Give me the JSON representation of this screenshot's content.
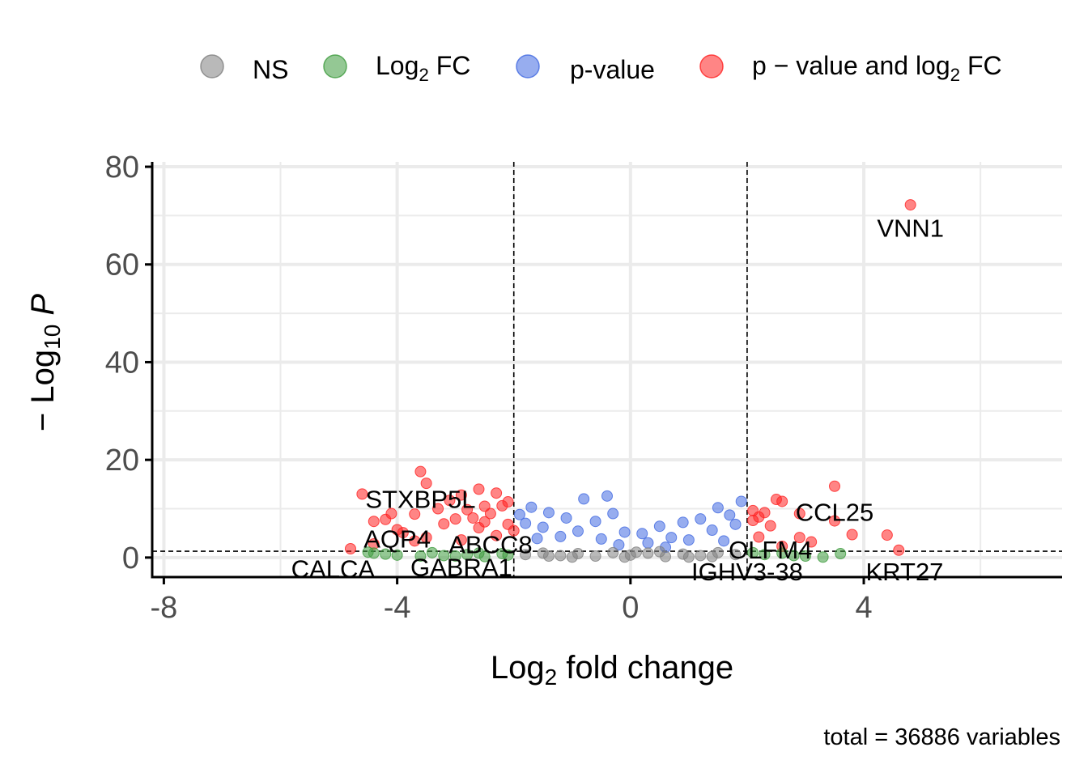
{
  "chart_data": {
    "type": "scatter",
    "title": "",
    "xlabel": {
      "prefix": "Log",
      "sub": "2",
      "suffix": " fold change"
    },
    "ylabel": {
      "prefix": "− Log",
      "sub": "10",
      "suffix": " P"
    },
    "caption": "total = 36886 variables",
    "xlim": [
      -8.2,
      7.4
    ],
    "ylim": [
      -4,
      81
    ],
    "x_ticks": [
      {
        "value": -8,
        "label": "-8"
      },
      {
        "value": -4,
        "label": "-4"
      },
      {
        "value": 0,
        "label": "0"
      },
      {
        "value": 4,
        "label": "4"
      }
    ],
    "y_ticks": [
      {
        "value": 0,
        "label": "0"
      },
      {
        "value": 20,
        "label": "20"
      },
      {
        "value": 40,
        "label": "40"
      },
      {
        "value": 60,
        "label": "60"
      },
      {
        "value": 80,
        "label": "80"
      }
    ],
    "grid": true,
    "legend_position": "top",
    "fc_cutoff": 2,
    "p_cutoff": 1.3,
    "legend": [
      {
        "key": "ns",
        "label": "NS",
        "sub": "",
        "suffix": "",
        "color": "#808080"
      },
      {
        "key": "fc",
        "label": "Log",
        "sub": "2",
        "suffix": " FC",
        "color": "#3d9b3d"
      },
      {
        "key": "p",
        "label": "p-value",
        "sub": "",
        "suffix": "",
        "color": "#4169e1"
      },
      {
        "key": "both",
        "label": "p − value and log",
        "sub": "2",
        "suffix": " FC",
        "color": "#ff2020"
      }
    ],
    "colors": {
      "ns": "#808080",
      "fc": "#3d9b3d",
      "p": "#4169e1",
      "both": "#ff2020"
    },
    "series": [
      {
        "key": "both",
        "points": [
          [
            4.8,
            72.2
          ],
          [
            -3.6,
            17.6
          ],
          [
            -3.5,
            15.2
          ],
          [
            3.5,
            14.6
          ],
          [
            -2.6,
            14.0
          ],
          [
            -4.6,
            13.0
          ],
          [
            -2.3,
            13.2
          ],
          [
            -2.9,
            12.8
          ],
          [
            -3.1,
            11.7
          ],
          [
            -2.1,
            11.4
          ],
          [
            2.5,
            11.9
          ],
          [
            2.6,
            11.5
          ],
          [
            -2.2,
            10.6
          ],
          [
            -3.3,
            10.0
          ],
          [
            -2.5,
            10.5
          ],
          [
            -2.8,
            9.8
          ],
          [
            2.1,
            9.6
          ],
          [
            2.3,
            9.2
          ],
          [
            -4.1,
            9.0
          ],
          [
            -3.7,
            8.9
          ],
          [
            -2.4,
            9.0
          ],
          [
            2.9,
            9.0
          ],
          [
            2.2,
            8.3
          ],
          [
            -4.2,
            7.8
          ],
          [
            -4.4,
            7.4
          ],
          [
            -2.7,
            8.1
          ],
          [
            -3.0,
            7.9
          ],
          [
            3.5,
            7.5
          ],
          [
            2.1,
            7.6
          ],
          [
            -3.2,
            6.9
          ],
          [
            -2.1,
            6.8
          ],
          [
            2.4,
            6.5
          ],
          [
            -4.0,
            5.7
          ],
          [
            -2.6,
            6.1
          ],
          [
            -3.9,
            5.1
          ],
          [
            3.8,
            4.7
          ],
          [
            4.4,
            4.6
          ],
          [
            2.9,
            4.1
          ],
          [
            -3.5,
            4.1
          ],
          [
            -2.3,
            4.5
          ],
          [
            2.2,
            4.2
          ],
          [
            -2.9,
            3.6
          ],
          [
            -3.7,
            3.4
          ],
          [
            3.1,
            3.2
          ],
          [
            -4.4,
            2.8
          ],
          [
            -4.8,
            1.8
          ],
          [
            4.6,
            1.5
          ],
          [
            2.6,
            2.3
          ],
          [
            -2.0,
            5.5
          ],
          [
            -2.5,
            7.3
          ]
        ]
      },
      {
        "key": "fc",
        "points": [
          [
            -4.4,
            0.9
          ],
          [
            -4.2,
            0.7
          ],
          [
            -4.0,
            0.5
          ],
          [
            -3.6,
            0.3
          ],
          [
            -3.2,
            0.4
          ],
          [
            -2.8,
            0.6
          ],
          [
            -2.5,
            0.2
          ],
          [
            -2.2,
            0.8
          ],
          [
            -3.4,
            1.0
          ],
          [
            -4.5,
            1.1
          ],
          [
            -2.1,
            0.5
          ],
          [
            -3.0,
            0.3
          ],
          [
            2.3,
            0.6
          ],
          [
            2.6,
            0.9
          ],
          [
            3.0,
            0.3
          ],
          [
            3.3,
            0.1
          ],
          [
            3.6,
            0.8
          ],
          [
            2.1,
            1.0
          ],
          [
            2.8,
            0.4
          ],
          [
            -2.6,
            0.9
          ]
        ]
      },
      {
        "key": "p",
        "points": [
          [
            -0.4,
            12.6
          ],
          [
            -0.8,
            12.0
          ],
          [
            1.9,
            11.5
          ],
          [
            -1.7,
            10.3
          ],
          [
            1.5,
            10.2
          ],
          [
            -1.4,
            9.2
          ],
          [
            -0.3,
            9.0
          ],
          [
            1.7,
            8.7
          ],
          [
            -1.1,
            8.1
          ],
          [
            -0.6,
            7.4
          ],
          [
            0.9,
            7.2
          ],
          [
            -1.9,
            8.8
          ],
          [
            1.2,
            7.9
          ],
          [
            0.5,
            6.4
          ],
          [
            -0.1,
            5.2
          ],
          [
            0.2,
            4.9
          ],
          [
            -0.9,
            5.4
          ],
          [
            1.4,
            5.6
          ],
          [
            -1.5,
            6.2
          ],
          [
            1.8,
            6.8
          ],
          [
            -1.8,
            7.0
          ],
          [
            0.7,
            4.1
          ],
          [
            -0.5,
            3.8
          ],
          [
            1.0,
            3.6
          ],
          [
            -1.2,
            4.3
          ],
          [
            0.3,
            3.0
          ],
          [
            -0.2,
            2.6
          ],
          [
            1.6,
            3.4
          ],
          [
            -1.6,
            3.9
          ],
          [
            0.6,
            2.1
          ]
        ]
      },
      {
        "key": "ns",
        "points": [
          [
            -1.8,
            0.6
          ],
          [
            -1.5,
            0.9
          ],
          [
            -1.2,
            0.4
          ],
          [
            -0.9,
            0.8
          ],
          [
            -0.6,
            0.3
          ],
          [
            -0.3,
            1.0
          ],
          [
            0.0,
            0.5
          ],
          [
            0.3,
            0.9
          ],
          [
            0.6,
            0.2
          ],
          [
            0.9,
            0.7
          ],
          [
            1.2,
            0.4
          ],
          [
            1.5,
            1.0
          ],
          [
            1.8,
            0.6
          ],
          [
            -0.1,
            0.1
          ],
          [
            0.1,
            1.1
          ],
          [
            -1.0,
            0.1
          ],
          [
            1.0,
            0.1
          ],
          [
            -1.4,
            0.3
          ],
          [
            1.4,
            0.2
          ],
          [
            0.5,
            1.2
          ]
        ]
      }
    ],
    "labels": [
      {
        "text": "VNN1",
        "x": 4.8,
        "y": 67.5
      },
      {
        "text": "STXBP5L",
        "x": -3.6,
        "y": 12.0
      },
      {
        "text": "CCL25",
        "x": 3.5,
        "y": 9.3
      },
      {
        "text": "AQP4",
        "x": -4.0,
        "y": 3.9
      },
      {
        "text": "ABCC8",
        "x": -2.4,
        "y": 2.7
      },
      {
        "text": "OLFM4",
        "x": 2.4,
        "y": 1.6
      },
      {
        "text": "CALCA",
        "x": -5.1,
        "y": -2.3
      },
      {
        "text": "GABRA1",
        "x": -2.9,
        "y": -1.9
      },
      {
        "text": "IGHV3-38",
        "x": 2.0,
        "y": -2.8
      },
      {
        "text": "KRT27",
        "x": 4.7,
        "y": -2.8
      }
    ]
  }
}
